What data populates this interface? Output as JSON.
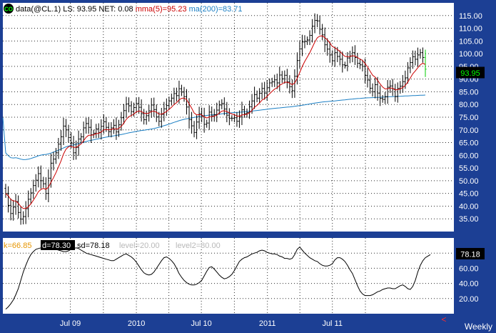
{
  "header": {
    "symbol_badge": "CO",
    "symbol": "data(@CL.1)",
    "last": "LS: 93.95",
    "net": "NET: 0.08",
    "mma": "mma(5)=95.23",
    "ma": "ma(200)=83.71"
  },
  "colors": {
    "frame": "#1c3f94",
    "panel": "#ffffff",
    "grid": "#2a2a2a",
    "bars": "#000000",
    "mma": "#cc0000",
    "ma": "#1b7fc4",
    "last_up": "#00cc00",
    "badge_bg": "#000000",
    "badge_fg": "#00ff00"
  },
  "chart_data": [
    {
      "type": "bar",
      "subtype": "ohlc",
      "symbol": "@CL.1",
      "interval": "Weekly",
      "ylim": [
        30,
        120
      ],
      "y_ticks": [
        35,
        40,
        45,
        50,
        55,
        60,
        65,
        70,
        75,
        80,
        85,
        90,
        95,
        100,
        105,
        110,
        115
      ],
      "y_tick_labels": [
        "35.00",
        "40.00",
        "45.00",
        "50.00",
        "55.00",
        "60.00",
        "65.00",
        "70.00",
        "75.00",
        "80.00",
        "85.00",
        "90.00",
        "95.00",
        "100.00",
        "105.00",
        "110.00",
        "115.00"
      ],
      "last_value": 93.95,
      "last_label": "93.95",
      "x_labels": [
        "Jul 09",
        "2010",
        "Jul 10",
        "2011",
        "Jul 11"
      ],
      "series": [
        {
          "name": "data(@CL.1)",
          "kind": "ohlc",
          "start": "2009-01-02",
          "step_days": 7,
          "close": [
            45.0,
            40.3,
            37.1,
            39.6,
            41.8,
            37.5,
            34.9,
            35.9,
            39.0,
            42.7,
            45.2,
            48.1,
            50.2,
            52.8,
            50.0,
            48.8,
            45.0,
            51.0,
            56.9,
            58.5,
            61.0,
            64.4,
            67.3,
            71.5,
            70.0,
            67.0,
            64.8,
            61.0,
            63.1,
            66.4,
            67.3,
            70.8,
            72.5,
            71.0,
            68.1,
            68.7,
            70.4,
            69.0,
            71.4,
            73.2,
            71.0,
            69.3,
            70.8,
            71.8,
            69.2,
            72.0,
            74.8,
            77.6,
            80.2,
            79.5,
            77.2,
            78.8,
            80.4,
            78.9,
            76.4,
            74.0,
            75.6,
            77.5,
            79.8,
            78.0,
            75.1,
            73.4,
            76.1,
            78.3,
            79.6,
            81.4,
            82.5,
            84.3,
            83.5,
            86.2,
            84.9,
            83.1,
            79.0,
            74.0,
            71.6,
            69.0,
            73.1,
            76.4,
            75.4,
            72.2,
            72.7,
            77.0,
            75.5,
            76.0,
            77.8,
            79.8,
            80.4,
            78.2,
            75.8,
            74.6,
            74.6,
            74.8,
            73.4,
            75.1,
            77.9,
            76.4,
            76.8,
            79.1,
            81.4,
            83.9,
            82.5,
            84.4,
            86.3,
            84.5,
            86.6,
            88.5,
            88.9,
            89.7,
            88.5,
            91.6,
            90.1,
            91.5,
            88.9,
            87.0,
            85.4,
            91.1,
            97.3,
            101.9,
            104.6,
            104.8,
            105.4,
            107.2,
            110.8,
            113.1,
            112.9,
            109.6,
            107.4,
            103.5,
            101.8,
            99.5,
            97.2,
            100.4,
            98.9,
            97.8,
            95.6,
            95.4,
            98.3,
            99.1,
            100.4,
            98.5,
            96.2,
            95.6,
            95.0,
            91.4,
            89.6,
            86.4,
            85.0,
            87.8,
            84.5,
            82.4,
            82.0,
            83.1,
            86.8,
            87.3,
            86.1,
            83.1,
            86.3,
            87.2,
            89.0,
            90.5,
            94.4,
            96.5,
            98.8,
            97.8,
            99.5,
            100.4,
            98.5,
            93.9
          ]
        },
        {
          "name": "mma(5)",
          "value": 95.23
        },
        {
          "name": "ma(200)",
          "value": 83.71
        }
      ]
    },
    {
      "type": "line",
      "subtype": "stochastic",
      "ylim": [
        0,
        100
      ],
      "y_ticks": [
        20,
        40,
        60,
        80
      ],
      "y_tick_labels": [
        "20.00",
        "40.00",
        "60.00",
        "80.00"
      ],
      "last_value": 78.18,
      "last_label": "78.18",
      "legend": [
        {
          "text": "k=66.85",
          "color": "#e69500"
        },
        {
          "text": "d=78.30",
          "color": "#ffffff",
          "highlight": "#000000"
        },
        {
          "text": "sd=78.18",
          "color": "#000000"
        },
        {
          "text": "level=20.00",
          "color": "#b8b8b8"
        },
        {
          "text": "level2=80.00",
          "color": "#b8b8b8"
        }
      ],
      "series": [
        {
          "name": "sd",
          "values": [
            6,
            9,
            13,
            18,
            25,
            33,
            44,
            55,
            64,
            72,
            78,
            82,
            85,
            86,
            87,
            88,
            88,
            88,
            87,
            86,
            85,
            84,
            83,
            82,
            82,
            83,
            85,
            86,
            87,
            86,
            84,
            82,
            80,
            79,
            78,
            77,
            76,
            75,
            74,
            73,
            72,
            71,
            70,
            70,
            72,
            74,
            76,
            78,
            79,
            77,
            75,
            72,
            68,
            63,
            58,
            54,
            52,
            51,
            52,
            55,
            60,
            65,
            70,
            74,
            75,
            73,
            70,
            66,
            60,
            53,
            48,
            44,
            41,
            39,
            38,
            38,
            39,
            41,
            44,
            50,
            56,
            61,
            62,
            59,
            55,
            51,
            48,
            46,
            47,
            49,
            52,
            57,
            63,
            69,
            72,
            74,
            75,
            77,
            79,
            80,
            81,
            83,
            84,
            83,
            81,
            80,
            79,
            79,
            78,
            76,
            75,
            73,
            73,
            72,
            73,
            78,
            85,
            88,
            84,
            80,
            77,
            74,
            72,
            70,
            69,
            66,
            64,
            63,
            63,
            64,
            66,
            71,
            74,
            74,
            72,
            69,
            64,
            58,
            53,
            45,
            37,
            30,
            26,
            24,
            24,
            24,
            25,
            27,
            29,
            30,
            32,
            33,
            34,
            34,
            33,
            33,
            35,
            37,
            38,
            36,
            33,
            32,
            36,
            44,
            55,
            64,
            70,
            74,
            76,
            78
          ]
        }
      ],
      "levels": [
        20,
        80
      ]
    }
  ],
  "footer": {
    "interval": "Weekly",
    "scroll_marker": "<"
  }
}
